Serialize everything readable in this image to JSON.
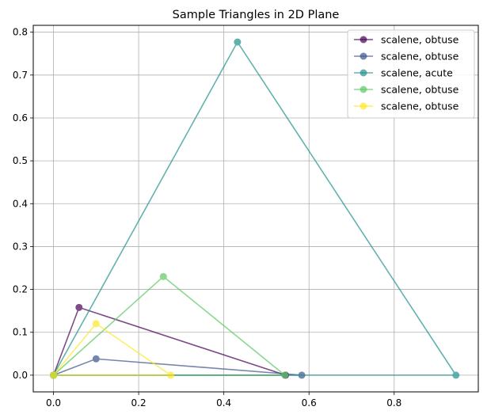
{
  "chart_data": {
    "type": "line",
    "title": "Sample Triangles in 2D Plane",
    "xlabel": "",
    "ylabel": "",
    "xlim": [
      -0.0475,
      0.9975
    ],
    "ylim": [
      -0.039,
      0.816
    ],
    "x_ticks": [
      0.0,
      0.2,
      0.4,
      0.6,
      0.8
    ],
    "x_tick_labels": [
      "0.0",
      "0.2",
      "0.4",
      "0.6",
      "0.8"
    ],
    "y_ticks": [
      0.0,
      0.1,
      0.2,
      0.3,
      0.4,
      0.5,
      0.6,
      0.7,
      0.8
    ],
    "y_tick_labels": [
      "0.0",
      "0.1",
      "0.2",
      "0.3",
      "0.4",
      "0.5",
      "0.6",
      "0.7",
      "0.8"
    ],
    "grid": true,
    "legend_position": "top-right",
    "series": [
      {
        "name": "scalene, obtuse",
        "color": "#440154",
        "x": [
          0.0,
          0.545,
          0.06,
          0.0
        ],
        "y": [
          0.0,
          0.0,
          0.158,
          0.0
        ]
      },
      {
        "name": "scalene, obtuse",
        "color": "#3b528b",
        "x": [
          0.0,
          0.583,
          0.1,
          0.0
        ],
        "y": [
          0.0,
          0.0,
          0.038,
          0.0
        ]
      },
      {
        "name": "scalene, acute",
        "color": "#21918c",
        "x": [
          0.0,
          0.945,
          0.432,
          0.0
        ],
        "y": [
          0.0,
          0.0,
          0.777,
          0.0
        ]
      },
      {
        "name": "scalene, obtuse",
        "color": "#5ec962",
        "x": [
          0.0,
          0.543,
          0.258,
          0.0
        ],
        "y": [
          0.0,
          0.0,
          0.23,
          0.0
        ]
      },
      {
        "name": "scalene, obtuse",
        "color": "#fde725",
        "x": [
          0.0,
          0.275,
          0.1,
          0.0
        ],
        "y": [
          0.0,
          0.0,
          0.12,
          0.0
        ]
      }
    ]
  }
}
